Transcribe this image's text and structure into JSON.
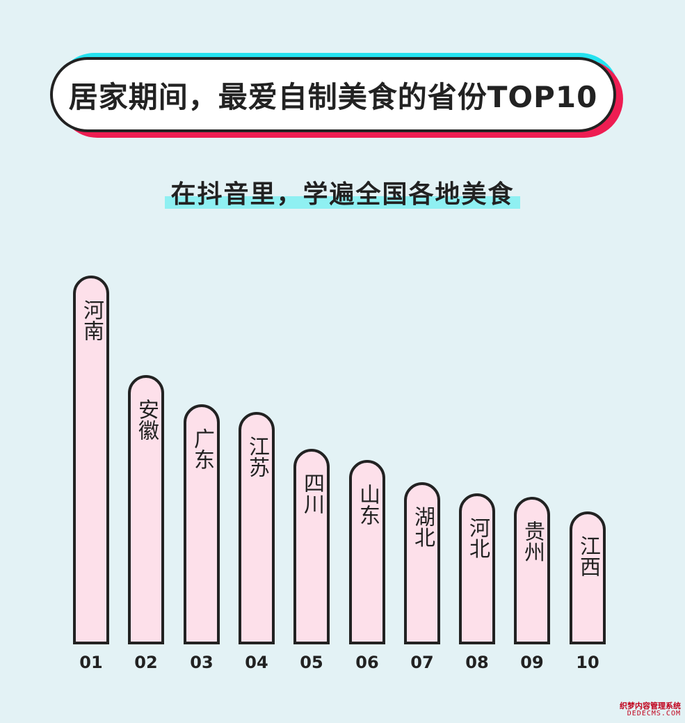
{
  "colors": {
    "background": "#e3f2f5",
    "bar_fill": "#fde0ea",
    "outline": "#222222",
    "title_shadow_cyan": "#25e2ef",
    "title_shadow_red": "#ee1d52",
    "subtitle_highlight": "#8ff0f2"
  },
  "header": {
    "title": "居家期间，最爱自制美食的省份TOP10",
    "subtitle": "在抖音里，学遍全国各地美食"
  },
  "chart_data": {
    "type": "bar",
    "title": "居家期间，最爱自制美食的省份TOP10",
    "subtitle": "在抖音里，学遍全国各地美食",
    "categories": [
      "01",
      "02",
      "03",
      "04",
      "05",
      "06",
      "07",
      "08",
      "09",
      "10"
    ],
    "bar_labels": [
      "河南",
      "安徽",
      "广东",
      "江苏",
      "四川",
      "山东",
      "湖北",
      "河北",
      "贵州",
      "江西"
    ],
    "values": [
      10,
      7.3,
      6.5,
      6.3,
      5.3,
      5.0,
      4.4,
      4.1,
      4.0,
      3.6
    ],
    "xlabel": "",
    "ylabel": "",
    "ylim": [
      0,
      10
    ],
    "grid": false,
    "legend": "none"
  },
  "watermark": {
    "line1": "织梦内容管理系统",
    "line2": "DEDECMS.COM"
  }
}
